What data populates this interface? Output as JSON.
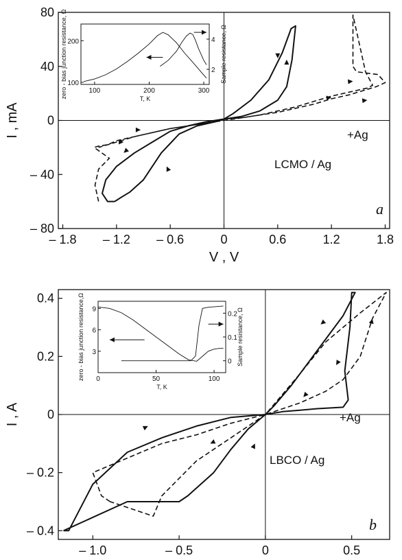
{
  "chart_data": [
    {
      "type": "line",
      "panel_letter": "a",
      "xlabel": "V , V",
      "ylabel": "I , mA",
      "xlim": [
        -1.85,
        1.85
      ],
      "ylim": [
        -80,
        80
      ],
      "xticks": [
        -1.8,
        -1.2,
        -0.6,
        0,
        0.6,
        1.2,
        1.8
      ],
      "xtick_labels": [
        "– 1.8",
        "– 1.2",
        "– 0.6",
        "0",
        "0.6",
        "1.2",
        "1.8"
      ],
      "yticks": [
        80,
        40,
        0,
        -40,
        -80
      ],
      "ytick_labels": [
        "80",
        "40",
        "0",
        "– 40",
        "– 80"
      ],
      "annotations": [
        "LCMO / Ag",
        "+Ag"
      ],
      "series": [
        {
          "style": "solid",
          "x": [
            -1.22,
            -1.3,
            -1.36,
            -1.32,
            -1.2,
            -1.0,
            -0.8,
            -0.6,
            -0.4,
            -0.2,
            0,
            0.2,
            0.4,
            0.6,
            0.7,
            0.76,
            0.8,
            0.75,
            0.65,
            0.5,
            0.3,
            0.1,
            0,
            -0.1,
            -0.3,
            -0.5,
            -0.7,
            -0.9,
            -1.05,
            -1.15,
            -1.22
          ],
          "y": [
            -60,
            -60,
            -54,
            -44,
            -34,
            -24,
            -16,
            -8,
            -4,
            -1,
            1,
            3,
            7,
            15,
            25,
            45,
            70,
            68,
            50,
            30,
            15,
            5,
            1,
            -1,
            -4,
            -10,
            -24,
            -44,
            -53,
            -57,
            -60
          ]
        },
        {
          "style": "dashed",
          "x": [
            -1.4,
            -1.44,
            -1.4,
            -1.28,
            -1.45,
            -1.4,
            -1.3,
            -1.2,
            -1.0,
            -0.8,
            -0.6,
            -0.4,
            -0.2,
            0,
            0.2,
            0.4,
            0.6,
            0.8,
            1.0,
            1.2,
            1.4,
            1.6,
            1.7,
            1.8,
            1.72,
            1.48,
            1.44,
            1.44,
            1.58,
            1.66,
            1.6,
            1.4,
            1.2,
            1.0,
            0.8,
            0.6,
            0.4,
            0.2,
            0,
            -0.2,
            -0.4,
            -0.6,
            -0.8,
            -1.0,
            -1.2,
            -1.4
          ],
          "y": [
            -60,
            -48,
            -36,
            -28,
            -20,
            -19,
            -18,
            -15,
            -12,
            -9,
            -6,
            -4,
            -2,
            1,
            2,
            4,
            6,
            9,
            12,
            16,
            19,
            23,
            25,
            28,
            34,
            36,
            40,
            78,
            36,
            26,
            24,
            21,
            18,
            14,
            10,
            7,
            4,
            2,
            0,
            -2,
            -4,
            -6,
            -9,
            -12,
            -16,
            -20
          ]
        }
      ],
      "inset": {
        "xlabel": "T, K",
        "ylabel_left": "zero - bias junction resistance, Ω",
        "ylabel_right": "Sample resistance, Ω",
        "xlim": [
          75,
          310
        ],
        "ylim_left": [
          95,
          240
        ],
        "ylim_right": [
          1,
          5
        ],
        "xticks": [
          100,
          200,
          300
        ],
        "yticks_left": [
          100,
          200
        ],
        "yticks_right": [
          2,
          4
        ],
        "series": [
          {
            "axis": "left",
            "x": [
              80,
              100,
              120,
              140,
              160,
              180,
              200,
              215,
              225,
              235,
              250,
              265,
              280,
              295,
              305
            ],
            "y": [
              102,
              108,
              118,
              132,
              150,
              170,
              192,
              212,
              220,
              214,
              195,
              170,
              148,
              125,
              110
            ]
          },
          {
            "axis": "right",
            "x": [
              220,
              235,
              250,
              260,
              268,
              275,
              280,
              285,
              290,
              300,
              305
            ],
            "y": [
              2.2,
              2.6,
              3.2,
              3.8,
              4.2,
              4.4,
              4.3,
              3.9,
              3.4,
              2.6,
              2.3
            ]
          }
        ]
      }
    },
    {
      "type": "line",
      "panel_letter": "b",
      "xlabel": "V , V",
      "ylabel": "I , A",
      "xlim": [
        -1.2,
        0.72
      ],
      "ylim": [
        -0.43,
        0.43
      ],
      "xticks": [
        -1.0,
        -0.5,
        0,
        0.5
      ],
      "xtick_labels": [
        "– 1.0",
        "– 0.5",
        "0",
        "0.5"
      ],
      "yticks": [
        0.4,
        0.2,
        0,
        -0.2,
        -0.4
      ],
      "ytick_labels": [
        "0.4",
        "0.2",
        "0",
        "– 0.2",
        "– 0.4"
      ],
      "annotations": [
        "LBCO / Ag",
        "+Ag"
      ],
      "series": [
        {
          "style": "solid",
          "x": [
            -1.17,
            -1.14,
            -1.0,
            -0.8,
            -0.6,
            -0.4,
            -0.2,
            0,
            0.1,
            0.2,
            0.3,
            0.45,
            0.48,
            0.46,
            0.49,
            0.5,
            0.52,
            0.45,
            0.35,
            0.25,
            0.15,
            0.05,
            0,
            -0.1,
            -0.2,
            -0.3,
            -0.45,
            -0.5,
            -0.8,
            -1.17
          ],
          "y": [
            -0.4,
            -0.4,
            -0.24,
            -0.13,
            -0.08,
            -0.04,
            -0.01,
            0,
            0.01,
            0.015,
            0.02,
            0.025,
            0.05,
            0.15,
            0.3,
            0.42,
            0.42,
            0.34,
            0.26,
            0.18,
            0.1,
            0.03,
            0,
            -0.05,
            -0.12,
            -0.2,
            -0.28,
            -0.3,
            -0.3,
            -0.4
          ]
        },
        {
          "style": "dashed",
          "x": [
            -0.9,
            -0.95,
            -1.0,
            -0.8,
            -0.6,
            -0.4,
            -0.2,
            0,
            0.2,
            0.35,
            0.45,
            0.5,
            0.55,
            0.62,
            0.7,
            0.55,
            0.45,
            0.35,
            0.2,
            0,
            -0.2,
            -0.4,
            -0.6,
            -0.65,
            -0.9
          ],
          "y": [
            -0.3,
            -0.28,
            -0.2,
            -0.15,
            -0.1,
            -0.07,
            -0.03,
            0,
            0.04,
            0.08,
            0.12,
            0.16,
            0.2,
            0.33,
            0.42,
            0.35,
            0.3,
            0.25,
            0.14,
            0,
            -0.08,
            -0.16,
            -0.28,
            -0.35,
            -0.3
          ]
        }
      ],
      "inset": {
        "xlabel": "T, K",
        "ylabel_left": "zero - bias junction resistance,Ω",
        "ylabel_right": "Sample resistance, Ω",
        "xlim": [
          0,
          110
        ],
        "ylim_left": [
          0,
          10
        ],
        "ylim_right": [
          -0.05,
          0.25
        ],
        "xticks": [
          0,
          50,
          100
        ],
        "yticks_left": [
          3,
          6,
          9
        ],
        "yticks_right": [
          0,
          0.1,
          0.2
        ],
        "series": [
          {
            "axis": "left",
            "x": [
              0,
              10,
              20,
              30,
              40,
              50,
              60,
              70,
              78,
              85,
              90,
              95,
              100,
              105,
              108
            ],
            "y": [
              9.2,
              9.0,
              8.4,
              7.4,
              6.2,
              5.0,
              3.8,
              2.6,
              1.8,
              1.6,
              2.3,
              3.0,
              3.3,
              3.4,
              3.4
            ]
          },
          {
            "axis": "right",
            "x": [
              20,
              70,
              80,
              84,
              87,
              90,
              95,
              108
            ],
            "y": [
              0.0,
              0.0,
              0.0,
              0.02,
              0.15,
              0.22,
              0.225,
              0.23
            ]
          }
        ]
      }
    }
  ]
}
